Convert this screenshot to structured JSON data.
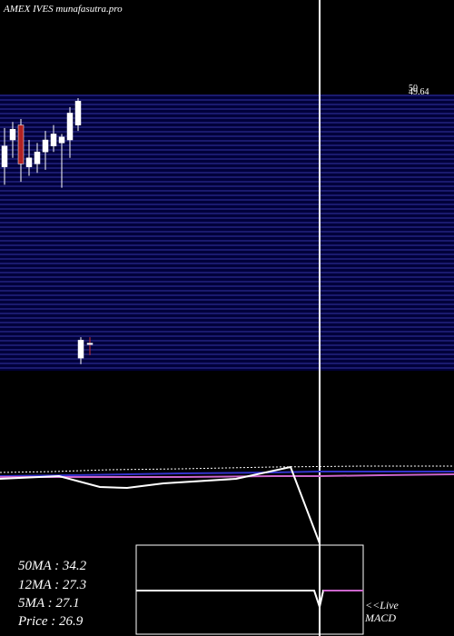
{
  "chart_data": {
    "type": "candlestick",
    "title": "AMEX IVES munafasutra.pro",
    "price_axis": {
      "last_price_label": "50",
      "top_label": "49.64"
    },
    "candles": [
      {
        "open": 40.5,
        "high": 47.0,
        "low": 37.5,
        "close": 44.0
      },
      {
        "open": 45.0,
        "high": 48.0,
        "low": 42.0,
        "close": 46.8
      },
      {
        "open": 47.5,
        "high": 48.5,
        "low": 38.0,
        "close": 41.0
      },
      {
        "open": 40.5,
        "high": 45.0,
        "low": 39.0,
        "close": 42.0
      },
      {
        "open": 41.0,
        "high": 44.5,
        "low": 39.5,
        "close": 43.0
      },
      {
        "open": 43.0,
        "high": 46.5,
        "low": 40.0,
        "close": 45.0
      },
      {
        "open": 44.0,
        "high": 47.5,
        "low": 43.0,
        "close": 46.0
      },
      {
        "open": 44.5,
        "high": 46.0,
        "low": 37.0,
        "close": 45.5
      },
      {
        "open": 45.0,
        "high": 50.5,
        "low": 42.0,
        "close": 49.5
      },
      {
        "open": 47.5,
        "high": 52.0,
        "low": 46.5,
        "close": 51.5
      },
      {
        "open": 8.5,
        "high": 12.0,
        "low": 7.5,
        "close": 11.5
      },
      {
        "open": 11.0,
        "high": 12.0,
        "low": 9.0,
        "close": 11.0
      }
    ],
    "moving_averages": [
      {
        "name": "50MA",
        "value": "34.2"
      },
      {
        "name": "12MA",
        "value": "27.3"
      },
      {
        "name": "5MA",
        "value": "27.1"
      }
    ],
    "price": "26.9",
    "macd_label": "<<Live MACD"
  },
  "colors": {
    "background": "#000000",
    "band_line": "#1a1a6e",
    "band_fill": "#00003a",
    "bull_candle": "#ffffff",
    "bear_candle": "#b22222",
    "macd_signal": "#cc66cc",
    "macd_ma": "#3333cc"
  }
}
